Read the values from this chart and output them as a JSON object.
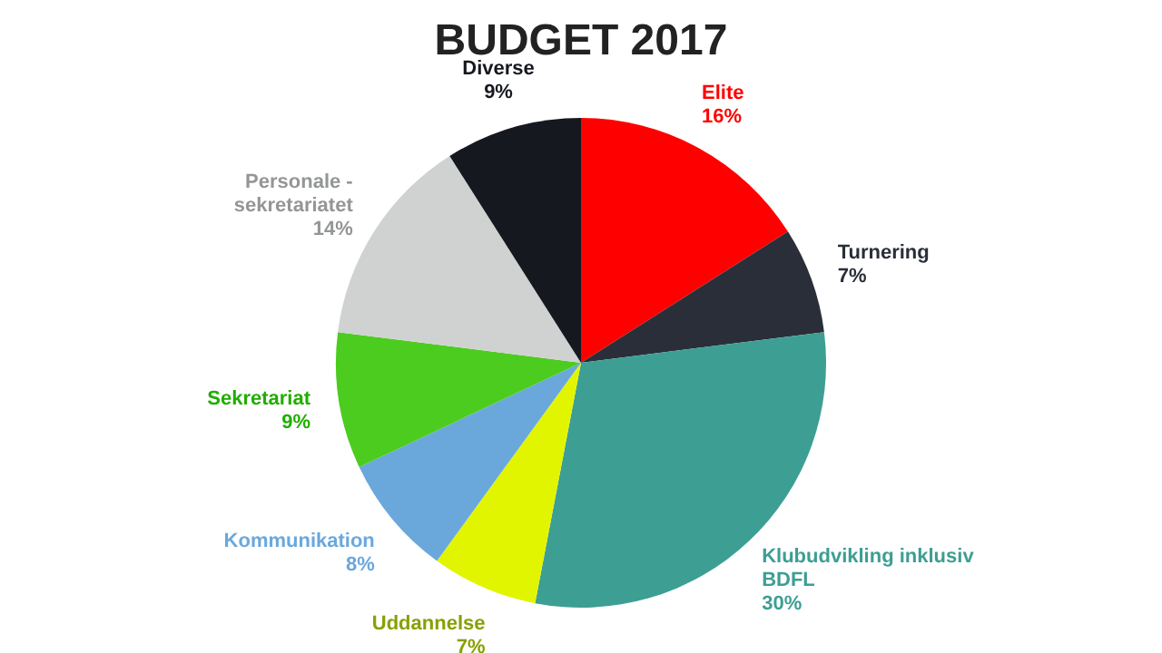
{
  "chart_data": {
    "type": "pie",
    "title": "BUDGET 2017",
    "categories": [
      "Elite",
      "Turnering",
      "Klubudvikling inklusiv BDFL",
      "Uddannelse",
      "Kommunikation",
      "Sekretariat",
      "Personale - sekretariatet",
      "Diverse"
    ],
    "values": [
      16,
      7,
      30,
      7,
      8,
      9,
      14,
      9
    ],
    "colors": [
      "#ff0000",
      "#2a2e38",
      "#3d9e94",
      "#e2f500",
      "#6aa8dc",
      "#4ccc1e",
      "#d0d2d2",
      "#16181f"
    ],
    "value_labels": [
      "16%",
      "7%",
      "30%",
      "7%",
      "8%",
      "9%",
      "14%",
      "9%"
    ]
  }
}
